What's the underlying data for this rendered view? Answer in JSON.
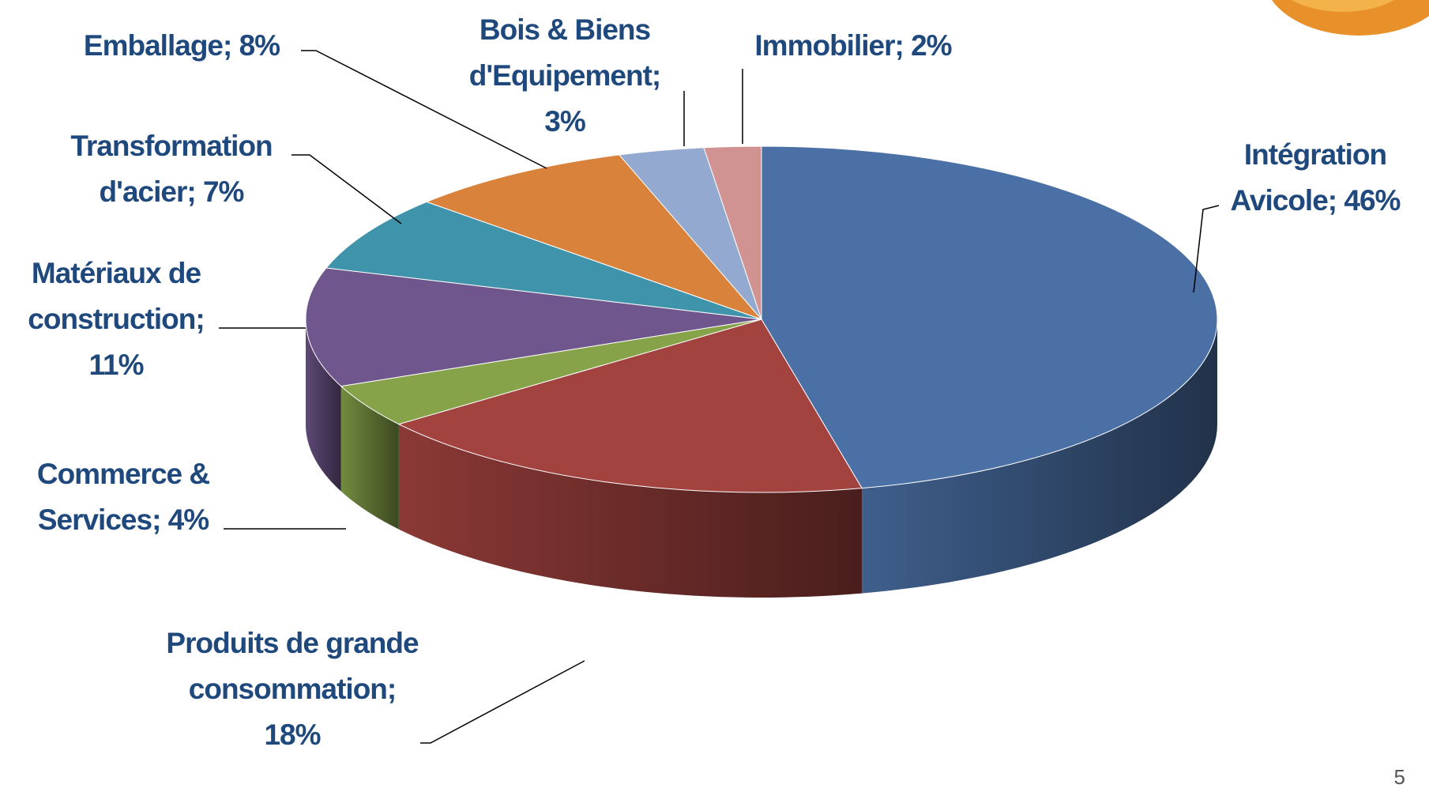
{
  "chart_data": {
    "type": "pie3d",
    "values": [
      46,
      18,
      4,
      11,
      7,
      8,
      3,
      2
    ],
    "value_labels": [
      "Intégration Avicole; 46%",
      "Produits de grande consommation; 18%",
      "Commerce & Services; 4%",
      "Matériaux de construction; 11%",
      "Transformation d'acier; 7%",
      "Emballage; 8%",
      "Bois & Biens d'Equipement; 3%",
      "Immobilier; 2%"
    ],
    "colors": [
      "#4a70a5",
      "#a3433f",
      "#86a34a",
      "#6f568c",
      "#3f93ab",
      "#d9823b",
      "#93a9cf",
      "#d19392"
    ]
  },
  "slide": {
    "page_number": "5"
  }
}
